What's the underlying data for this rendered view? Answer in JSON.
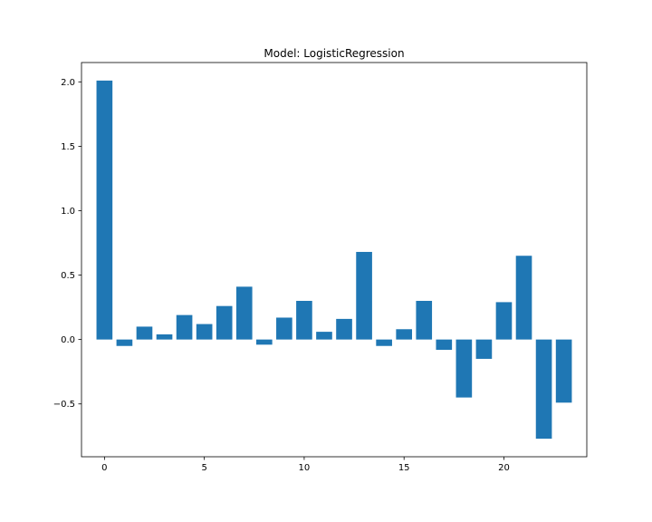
{
  "chart_data": {
    "type": "bar",
    "title": "Model: LogisticRegression",
    "xlabel": "",
    "ylabel": "",
    "x": [
      0,
      1,
      2,
      3,
      4,
      5,
      6,
      7,
      8,
      9,
      10,
      11,
      12,
      13,
      14,
      15,
      16,
      17,
      18,
      19,
      20,
      21,
      22,
      23
    ],
    "values": [
      2.01,
      -0.05,
      0.1,
      0.04,
      0.19,
      0.12,
      0.26,
      0.41,
      -0.04,
      0.17,
      0.3,
      0.06,
      0.16,
      0.68,
      -0.05,
      0.08,
      0.3,
      -0.08,
      -0.45,
      -0.15,
      0.29,
      0.65,
      -0.77,
      -0.49
    ],
    "xlim": [
      -1.15,
      24.15
    ],
    "ylim": [
      -0.91,
      2.15
    ],
    "xticks": [
      0,
      5,
      10,
      15,
      20
    ],
    "xtick_labels": [
      "0",
      "5",
      "10",
      "15",
      "20"
    ],
    "yticks": [
      -0.5,
      0.0,
      0.5,
      1.0,
      1.5,
      2.0
    ],
    "ytick_labels": [
      "−0.5",
      "0.0",
      "0.5",
      "1.0",
      "1.5",
      "2.0"
    ],
    "bar_color": "#1f77b4",
    "grid": false,
    "legend": false
  }
}
